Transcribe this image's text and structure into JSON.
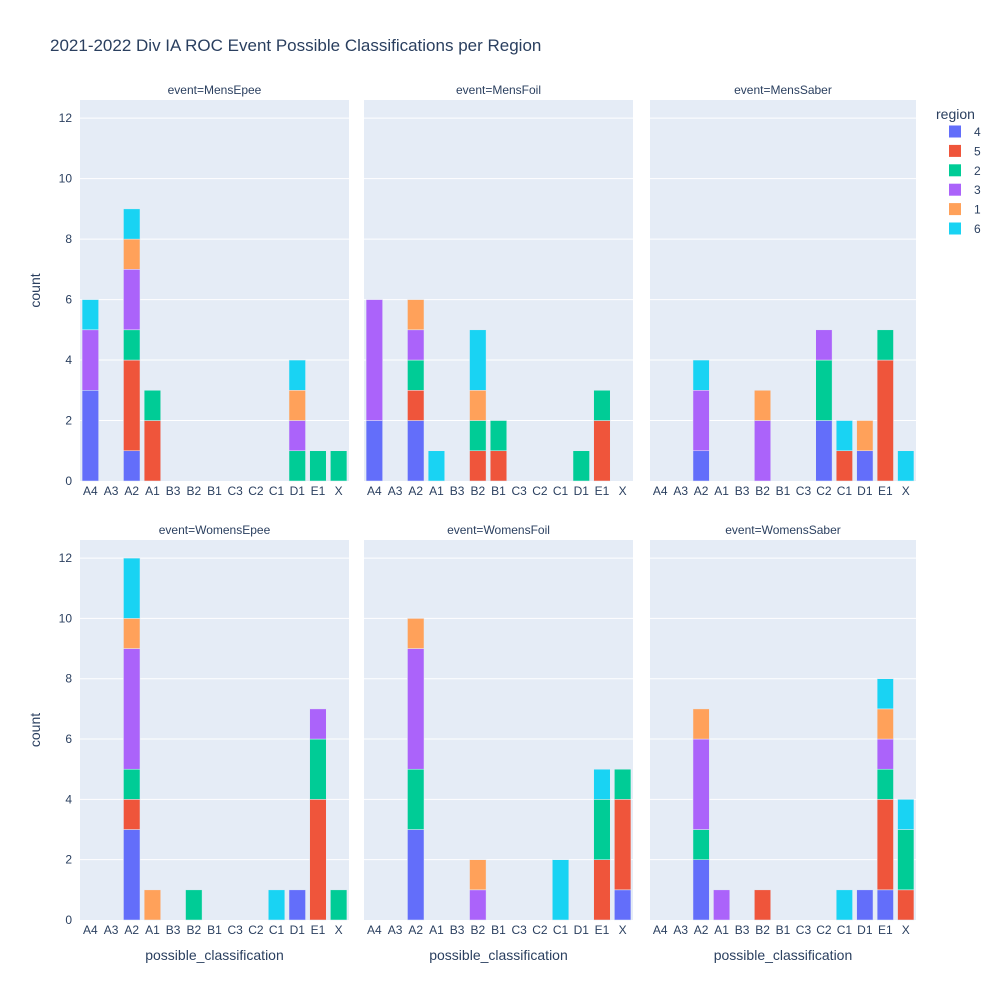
{
  "chart_data": {
    "type": "bar",
    "barmode": "stack",
    "title": "2021-2022 Div IA ROC Event Possible Classifications per Region",
    "xlabel": "possible_classification",
    "ylabel": "count",
    "ylim": [
      0,
      12.6
    ],
    "yticks": [
      0,
      2,
      4,
      6,
      8,
      10,
      12
    ],
    "grid": true,
    "legend": {
      "title": "region",
      "position": "right",
      "items": [
        {
          "name": "4",
          "color": "#636efa"
        },
        {
          "name": "5",
          "color": "#ef553b"
        },
        {
          "name": "2",
          "color": "#00cc96"
        },
        {
          "name": "3",
          "color": "#ab63fa"
        },
        {
          "name": "1",
          "color": "#ffa15a"
        },
        {
          "name": "6",
          "color": "#19d3f3"
        }
      ]
    },
    "categories": [
      "A4",
      "A3",
      "A2",
      "A1",
      "B3",
      "B2",
      "B1",
      "C3",
      "C2",
      "C1",
      "D1",
      "E1",
      "X"
    ],
    "stack_order": [
      "4",
      "5",
      "2",
      "3",
      "1",
      "6"
    ],
    "panels": [
      {
        "title": "event=MensEpee",
        "order": [
          "A4",
          "A3",
          "A2",
          "A1",
          "B3",
          "B2",
          "B1",
          "C3",
          "C2",
          "C1",
          "D1",
          "E1",
          "X"
        ],
        "data": {
          "A4": {
            "4": 3,
            "3": 2,
            "6": 1
          },
          "A2": {
            "4": 1,
            "5": 3,
            "2": 1,
            "3": 2,
            "1": 1,
            "6": 1
          },
          "A1": {
            "5": 2,
            "2": 1
          },
          "D1": {
            "2": 1,
            "3": 1,
            "1": 1,
            "6": 1
          },
          "E1": {
            "2": 1
          },
          "X": {
            "2": 1
          }
        }
      },
      {
        "title": "event=MensFoil",
        "order": [
          "A4",
          "A3",
          "A2",
          "A1",
          "B3",
          "B2",
          "B1",
          "C3",
          "C2",
          "C1",
          "D1",
          "E1",
          "X"
        ],
        "data": {
          "A4": {
            "4": 2,
            "3": 4
          },
          "A2": {
            "4": 2,
            "5": 1,
            "2": 1,
            "3": 1,
            "1": 1
          },
          "A1": {
            "6": 1
          },
          "B2": {
            "5": 1,
            "2": 1,
            "1": 1,
            "6": 2
          },
          "B1": {
            "5": 1,
            "2": 1
          },
          "D1": {
            "2": 1
          },
          "E1": {
            "5": 2,
            "2": 1
          }
        }
      },
      {
        "title": "event=MensSaber",
        "order": [
          "A4",
          "A3",
          "A2",
          "A1",
          "B3",
          "B2",
          "B1",
          "C3",
          "C2",
          "C1",
          "D1",
          "E1",
          "X"
        ],
        "data": {
          "A2": {
            "4": 1,
            "3": 2,
            "6": 1
          },
          "B2": {
            "3": 2,
            "1": 1
          },
          "C2": {
            "4": 2,
            "2": 2,
            "3": 1
          },
          "C1": {
            "5": 1,
            "6": 1
          },
          "D1": {
            "4": 1,
            "1": 1
          },
          "E1": {
            "5": 4,
            "2": 1
          },
          "X": {
            "6": 1
          }
        }
      },
      {
        "title": "event=WomensEpee",
        "order": [
          "A4",
          "A3",
          "A2",
          "A1",
          "B3",
          "B2",
          "B1",
          "C3",
          "C2",
          "C1",
          "D1",
          "E1",
          "X"
        ],
        "data": {
          "A2": {
            "4": 3,
            "5": 1,
            "2": 1,
            "3": 4,
            "1": 1,
            "6": 2
          },
          "A1": {
            "1": 1
          },
          "B2": {
            "2": 1
          },
          "C1": {
            "6": 1
          },
          "D1": {
            "4": 1
          },
          "E1": {
            "5": 4,
            "2": 2,
            "3": 1
          },
          "X": {
            "2": 1
          }
        }
      },
      {
        "title": "event=WomensFoil",
        "order": [
          "A4",
          "A3",
          "A2",
          "A1",
          "B3",
          "B2",
          "B1",
          "C3",
          "C2",
          "C1",
          "D1",
          "E1",
          "X"
        ],
        "data": {
          "A2": {
            "4": 3,
            "2": 2,
            "3": 4,
            "1": 1
          },
          "B2": {
            "3": 1,
            "1": 1
          },
          "C1": {
            "6": 2
          },
          "E1": {
            "5": 2,
            "2": 2,
            "6": 1
          },
          "X": {
            "4": 1,
            "5": 3,
            "2": 1
          }
        }
      },
      {
        "title": "event=WomensSaber",
        "order": [
          "A4",
          "A3",
          "A2",
          "A1",
          "B3",
          "B2",
          "B1",
          "C3",
          "C2",
          "C1",
          "D1",
          "E1",
          "X"
        ],
        "data": {
          "A2": {
            "4": 2,
            "2": 1,
            "3": 3,
            "1": 1
          },
          "A1": {
            "3": 1
          },
          "B2": {
            "5": 1
          },
          "C1": {
            "6": 1
          },
          "D1": {
            "4": 1
          },
          "E1": {
            "4": 1,
            "5": 3,
            "2": 1,
            "3": 1,
            "1": 1,
            "6": 1
          },
          "X": {
            "5": 1,
            "2": 2,
            "6": 1
          }
        }
      }
    ]
  }
}
